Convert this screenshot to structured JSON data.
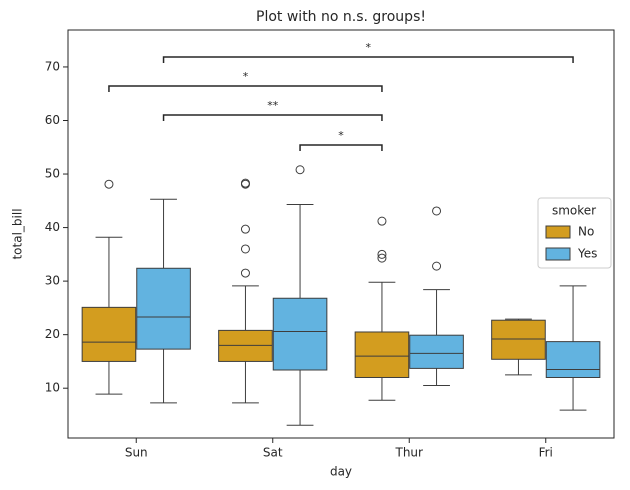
{
  "chart_data": {
    "type": "box",
    "title": "Plot with no n.s. groups!",
    "x_label": "day",
    "y_label": "total_bill",
    "categories": [
      "Sun",
      "Sat",
      "Thur",
      "Fri"
    ],
    "ylim": [
      0.7,
      76.9
    ],
    "yticks": [
      10,
      20,
      30,
      40,
      50,
      60,
      70
    ],
    "legend": {
      "title": "smoker",
      "position": "right"
    },
    "series": [
      {
        "name": "No",
        "color": "#d39d1f",
        "boxes": [
          {
            "low": 8.9,
            "q1": 15.0,
            "median": 18.6,
            "q3": 25.1,
            "high": 38.2,
            "outliers": [
              48.1
            ]
          },
          {
            "low": 7.25,
            "q1": 15.0,
            "median": 18.0,
            "q3": 20.8,
            "high": 29.1,
            "outliers": [
              48.3,
              48.1,
              39.7,
              36.0,
              31.5
            ]
          },
          {
            "low": 7.75,
            "q1": 12.0,
            "median": 16.0,
            "q3": 20.5,
            "high": 29.8,
            "outliers": [
              41.2,
              35.0,
              34.3
            ]
          },
          {
            "low": 12.5,
            "q1": 15.4,
            "median": 19.2,
            "q3": 22.7,
            "high": 22.9,
            "outliers": []
          }
        ]
      },
      {
        "name": "Yes",
        "color": "#62b3e0",
        "boxes": [
          {
            "low": 7.25,
            "q1": 17.3,
            "median": 23.3,
            "q3": 32.4,
            "high": 45.3,
            "outliers": []
          },
          {
            "low": 3.07,
            "q1": 13.4,
            "median": 20.6,
            "q3": 26.8,
            "high": 44.3,
            "outliers": [
              50.8
            ]
          },
          {
            "low": 10.5,
            "q1": 13.7,
            "median": 16.5,
            "q3": 19.9,
            "high": 28.4,
            "outliers": [
              43.1,
              32.8
            ]
          },
          {
            "low": 5.9,
            "q1": 12.0,
            "median": 13.5,
            "q3": 18.7,
            "high": 29.1,
            "outliers": []
          }
        ]
      }
    ],
    "annotations": [
      {
        "text": "*",
        "from": [
          "Sat",
          "Yes"
        ],
        "to": [
          "Thur",
          "No"
        ]
      },
      {
        "text": "**",
        "from": [
          "Sun",
          "Yes"
        ],
        "to": [
          "Thur",
          "No"
        ]
      },
      {
        "text": "*",
        "from": [
          "Sun",
          "No"
        ],
        "to": [
          "Thur",
          "No"
        ]
      },
      {
        "text": "*",
        "from": [
          "Sun",
          "Yes"
        ],
        "to": [
          "Fri",
          "Yes"
        ]
      }
    ]
  }
}
